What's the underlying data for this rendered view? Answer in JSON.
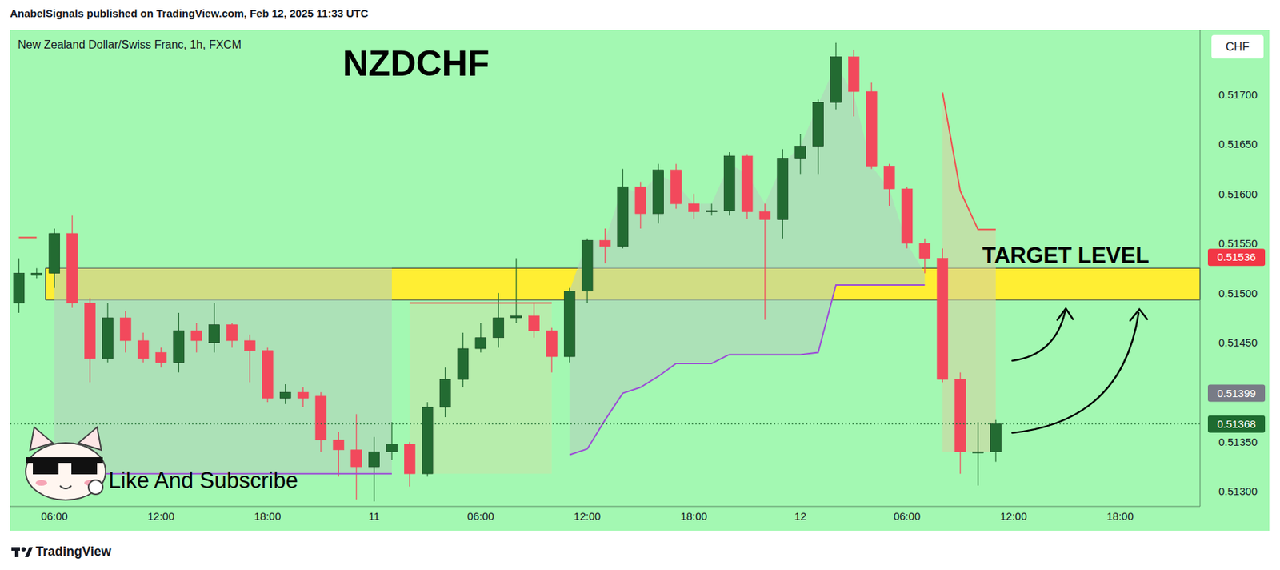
{
  "chart_data": {
    "type": "candlestick",
    "title": "NZDCHF",
    "subtitle": "New Zealand Dollar/Swiss Franc, 1h, FXCM",
    "header": "AnabelSignals published on TradingView.com, Feb 12, 2025 11:33 UTC",
    "currency": "CHF",
    "watermark": "Like And Subscribe",
    "footer": "TradingView",
    "categories": [
      null,
      null,
      "06:00",
      null,
      null,
      null,
      null,
      null,
      "12:00",
      null,
      null,
      null,
      null,
      null,
      "18:00",
      null,
      null,
      null,
      null,
      null,
      "11",
      null,
      null,
      null,
      null,
      null,
      "06:00",
      null,
      null,
      null,
      null,
      null,
      "12:00",
      null,
      null,
      null,
      null,
      null,
      "18:00",
      null,
      null,
      null,
      null,
      null,
      "12",
      null,
      null,
      null,
      null,
      null,
      "06:00",
      null,
      null,
      null,
      null,
      null,
      "12:00",
      null,
      null,
      null,
      null,
      null,
      "18:00",
      null,
      null,
      null,
      null
    ],
    "ohlc": {
      "open": [
        0.5149,
        0.51518,
        0.5152,
        0.5156,
        0.5149,
        0.51434,
        0.51475,
        0.51452,
        0.5144,
        0.5143,
        0.51462,
        0.5145,
        0.51468,
        0.51452,
        0.51442,
        0.51394,
        0.514,
        0.51396,
        0.51352,
        0.51342,
        0.51325,
        0.5134,
        0.51348,
        0.51318,
        0.51385,
        0.51413,
        0.51444,
        0.51455,
        0.51475,
        0.51477,
        0.51462,
        0.51436,
        0.51502,
        0.51553,
        0.51547,
        0.51607,
        0.5158,
        0.51624,
        0.5159,
        0.51582,
        0.51583,
        0.51638,
        0.51582,
        0.51574,
        0.51636,
        0.51648,
        0.51692,
        0.51738,
        0.51703,
        0.51628,
        0.51605,
        0.5155,
        0.51535,
        0.51413,
        0.51339,
        0.5134,
        null,
        null,
        null,
        null,
        null,
        null,
        null,
        null,
        null,
        null,
        null
      ],
      "high": [
        0.51535,
        0.51525,
        0.51565,
        0.51578,
        0.51495,
        0.5149,
        0.51482,
        0.5146,
        0.51445,
        0.5148,
        0.5147,
        0.5149,
        0.5147,
        0.51458,
        0.51445,
        0.51408,
        0.51405,
        0.514,
        0.5136,
        0.51378,
        0.51355,
        0.5137,
        0.5135,
        0.5139,
        0.51425,
        0.5146,
        0.5147,
        0.515,
        0.51535,
        0.5149,
        0.51465,
        0.51505,
        0.51555,
        0.51565,
        0.51625,
        0.51612,
        0.5163,
        0.5163,
        0.516,
        0.5159,
        0.51642,
        0.5164,
        0.5159,
        0.51645,
        0.5166,
        0.51695,
        0.51752,
        0.51745,
        0.51712,
        0.5163,
        0.51607,
        0.51555,
        0.51545,
        0.5142,
        0.5137,
        0.51372,
        null,
        null,
        null,
        null,
        null,
        null,
        null,
        null,
        null,
        null,
        null
      ],
      "low": [
        0.5148,
        0.51515,
        0.51505,
        0.51485,
        0.5141,
        0.5143,
        0.5144,
        0.5143,
        0.51425,
        0.5142,
        0.5144,
        0.5144,
        0.51445,
        0.5141,
        0.5139,
        0.51388,
        0.51385,
        0.5134,
        0.51315,
        0.51292,
        0.5129,
        0.51332,
        0.51305,
        0.51315,
        0.51375,
        0.51405,
        0.5144,
        0.51445,
        0.5147,
        0.51455,
        0.5142,
        0.5143,
        0.5149,
        0.5153,
        0.51545,
        0.51565,
        0.5157,
        0.51585,
        0.51575,
        0.51578,
        0.51578,
        0.51575,
        0.51473,
        0.51555,
        0.5162,
        0.5162,
        0.51685,
        0.51678,
        0.51625,
        0.51588,
        0.51545,
        0.5152,
        0.5141,
        0.51318,
        0.51306,
        0.5133,
        null,
        null,
        null,
        null,
        null,
        null,
        null,
        null,
        null,
        null,
        null
      ],
      "close": [
        0.5152,
        0.5152,
        0.5156,
        0.5149,
        0.51434,
        0.51475,
        0.51452,
        0.51434,
        0.5143,
        0.51462,
        0.51452,
        0.51468,
        0.51452,
        0.51442,
        0.51394,
        0.514,
        0.51394,
        0.51352,
        0.51342,
        0.51325,
        0.5134,
        0.51348,
        0.51318,
        0.51385,
        0.51413,
        0.51444,
        0.51455,
        0.51475,
        0.51477,
        0.51462,
        0.51436,
        0.51502,
        0.51553,
        0.51547,
        0.51607,
        0.5158,
        0.51624,
        0.5159,
        0.51582,
        0.51583,
        0.51638,
        0.51582,
        0.51574,
        0.51636,
        0.51648,
        0.51692,
        0.51738,
        0.51703,
        0.51628,
        0.51605,
        0.5155,
        0.51535,
        0.51413,
        0.5134,
        0.5134,
        0.51368,
        null,
        null,
        null,
        null,
        null,
        null,
        null,
        null,
        null,
        null,
        null
      ]
    },
    "lines": [
      {
        "color": "#9c4fd6",
        "values": [
          null,
          null,
          0.51318,
          0.51318,
          0.51318,
          0.51318,
          0.51318,
          0.51318,
          0.51318,
          0.51318,
          0.51318,
          0.51318,
          0.51318,
          0.51318,
          0.51318,
          0.51318,
          0.51318,
          0.51318,
          0.51318,
          0.51318,
          0.51318,
          0.51318,
          null,
          null,
          null,
          null,
          null,
          null,
          null,
          null,
          null,
          0.51337,
          0.51343,
          0.51372,
          0.51399,
          0.51405,
          0.51416,
          0.51429,
          0.51429,
          0.51429,
          0.51438,
          0.51438,
          0.51438,
          0.51438,
          0.51438,
          0.5144,
          0.51508,
          0.51508,
          0.51508,
          0.51508,
          0.51508,
          0.51508,
          null,
          null,
          null,
          null,
          null,
          null,
          null,
          null,
          null,
          null,
          null,
          null,
          null,
          null,
          null
        ]
      },
      {
        "color": "#f0504f",
        "values": [
          0.51556,
          0.51556,
          null,
          null,
          null,
          null,
          null,
          null,
          null,
          null,
          null,
          null,
          null,
          null,
          null,
          null,
          null,
          null,
          null,
          null,
          null,
          null,
          0.5149,
          0.5149,
          0.5149,
          0.5149,
          0.5149,
          0.5149,
          0.5149,
          0.5149,
          0.5149,
          null,
          null,
          null,
          null,
          null,
          null,
          null,
          null,
          null,
          null,
          null,
          null,
          null,
          null,
          null,
          null,
          null,
          null,
          null,
          null,
          null,
          0.51702,
          0.51603,
          0.51564,
          0.51564,
          null,
          null,
          null,
          null,
          null,
          null,
          null,
          null,
          null,
          null,
          null
        ]
      }
    ],
    "bands": [
      {
        "color": "#b3d2bb",
        "start": 2,
        "lower": [
          0.51318,
          0.51318,
          0.51318,
          0.51318,
          0.51318,
          0.51318,
          0.51318,
          0.51318,
          0.51318,
          0.51318,
          0.51318,
          0.51318,
          0.51318,
          0.51318,
          0.51318,
          0.51318,
          0.51318,
          0.51318,
          0.51318,
          0.51318
        ],
        "upper": [
          0.51525,
          0.51525,
          0.51525,
          0.51525,
          0.51525,
          0.51525,
          0.51525,
          0.51525,
          0.51525,
          0.51525,
          0.51525,
          0.51525,
          0.51525,
          0.51525,
          0.51525,
          0.51525,
          0.51525,
          0.51525,
          0.51525,
          0.51525
        ]
      },
      {
        "color": "#c4e6a8",
        "start": 22,
        "lower": [
          0.51318,
          0.51318,
          0.51318,
          0.51318,
          0.51318,
          0.51318,
          0.51318,
          0.51318,
          0.51318
        ],
        "upper": [
          0.5149,
          0.5149,
          0.5149,
          0.5149,
          0.5149,
          0.5149,
          0.5149,
          0.5149,
          0.5149
        ]
      },
      {
        "color": "#b3d2bb",
        "start": 31,
        "lower": [
          0.51337,
          0.51343,
          0.51372,
          0.51399,
          0.51405,
          0.51416,
          0.51429,
          0.51429,
          0.51429,
          0.51438,
          0.51438,
          0.51438,
          0.51438,
          0.51438,
          0.5144,
          0.51508,
          0.51508,
          0.51508,
          0.51508,
          0.51508,
          0.51508
        ],
        "upper": [
          0.51502,
          0.51553,
          0.51553,
          0.51607,
          0.516,
          0.5162,
          0.5161,
          0.5159,
          0.5159,
          0.5163,
          0.5162,
          0.5159,
          0.5163,
          0.51648,
          0.5169,
          0.5173,
          0.517,
          0.51628,
          0.51605,
          0.5155,
          0.5152
        ]
      },
      {
        "color": "#d2d3a2",
        "start": 52,
        "lower": [
          0.5134,
          0.5134,
          0.5134,
          0.5134
        ],
        "upper": [
          0.51702,
          0.51603,
          0.51564,
          0.51564
        ]
      }
    ],
    "target_zone": {
      "label": "TARGET LEVEL",
      "low": 0.51493,
      "high": 0.51525,
      "start": 2,
      "end": 66
    },
    "price_tags": [
      {
        "value": 0.51536,
        "label": "0.51536",
        "color": "#f23645"
      },
      {
        "value": 0.51399,
        "label": "0.51399",
        "color": "#787b86"
      },
      {
        "value": 0.51368,
        "label": "0.51368",
        "color": "#1e6b30",
        "line_style": "dotted"
      }
    ],
    "ylim": [
      0.51285,
      0.51765
    ],
    "yticks": [
      {
        "value": 0.513,
        "label": "0.51300"
      },
      {
        "value": 0.5135,
        "label": "0.51350"
      },
      {
        "value": 0.5145,
        "label": "0.51450"
      },
      {
        "value": 0.515,
        "label": "0.51500"
      },
      {
        "value": 0.5155,
        "label": "0.51550"
      },
      {
        "value": 0.516,
        "label": "0.51600"
      },
      {
        "value": 0.5165,
        "label": "0.51650"
      },
      {
        "value": 0.517,
        "label": "0.51700"
      }
    ],
    "grid": false,
    "data_labels": false
  }
}
